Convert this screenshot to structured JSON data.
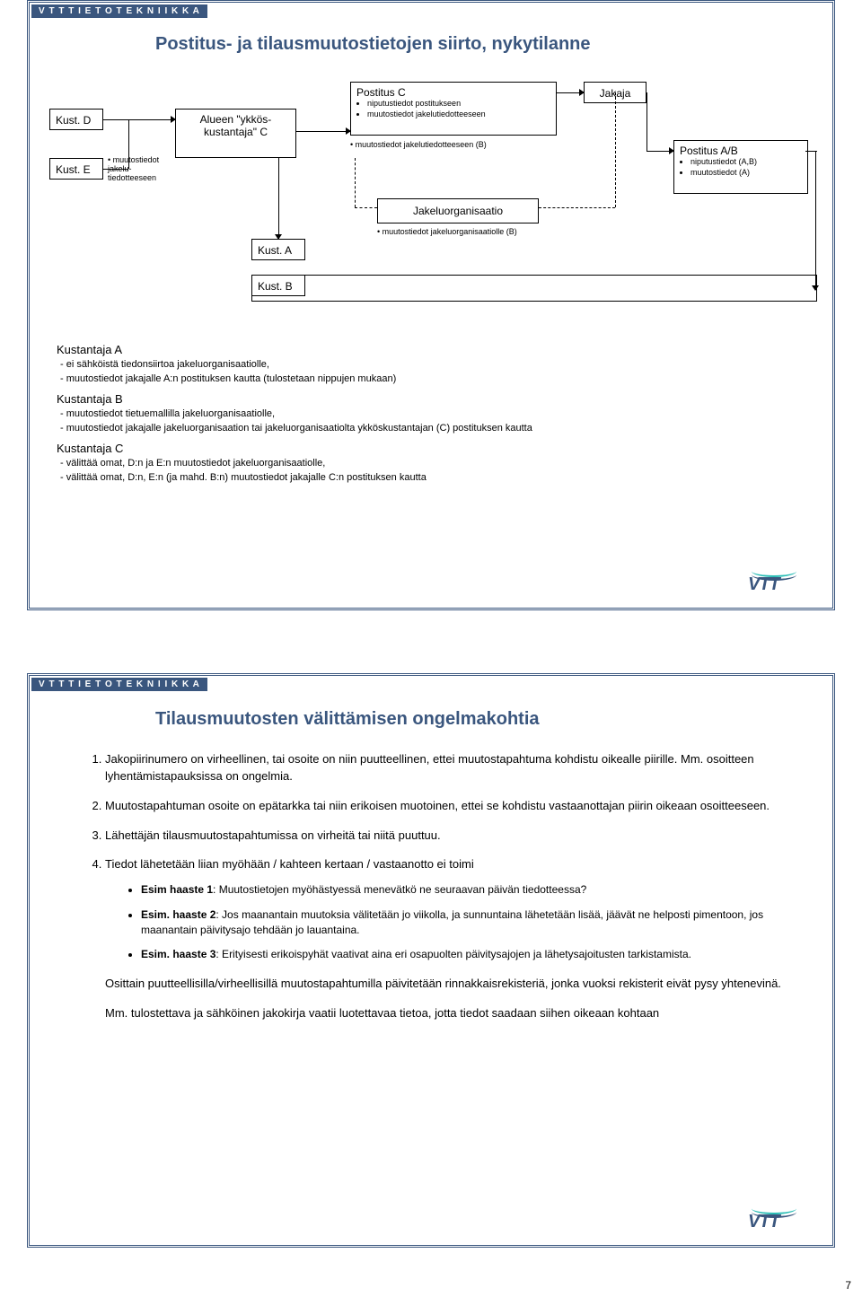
{
  "header": "V T T  T I E T O T E K N I I K K A",
  "slide1": {
    "title": "Postitus- ja tilausmuutostietojen siirto, nykytilanne",
    "boxes": {
      "kustD": "Kust. D",
      "kustE": "Kust. E",
      "annotE": "• muutostiedot jakelu-tiedotteeseen",
      "alueen": "Alueen \"ykkös-kustantaja\" C",
      "kustA": "Kust. A",
      "kustB": "Kust. B",
      "postitusC": "Postitus C",
      "postitusC_sub1": "niputustiedot postitukseen",
      "postitusC_sub2": "muutostiedot jakelutiedotteeseen",
      "postitusC_note": "muutostiedot jakelutiedotteeseen (B)",
      "jakeluorg": "Jakeluorganisaatio",
      "jakeluorg_note": "muutostiedot jakeluorganisaatiolle (B)",
      "jakaja": "Jakaja",
      "postitusAB": "Postitus A/B",
      "postitusAB_sub1": "niputustiedot (A,B)",
      "postitusAB_sub2": "muutostiedot (A)"
    },
    "text": {
      "kA_h": "Kustantaja A",
      "kA_1": "-  ei sähköistä tiedonsiirtoa jakeluorganisaatiolle,",
      "kA_2": "-  muutostiedot jakajalle A:n postituksen kautta (tulostetaan nippujen mukaan)",
      "kB_h": "Kustantaja B",
      "kB_1": "-  muutostiedot tietuemallilla jakeluorganisaatiolle,",
      "kB_2": "-  muutostiedot jakajalle jakeluorganisaation tai jakeluorganisaatiolta ykköskustantajan (C) postituksen kautta",
      "kC_h": "Kustantaja C",
      "kC_1": "-  välittää omat, D:n ja E:n muutostiedot jakeluorganisaatiolle,",
      "kC_2": "-  välittää omat, D:n, E:n (ja mahd. B:n) muutostiedot jakajalle C:n postituksen kautta"
    }
  },
  "slide2": {
    "title": "Tilausmuutosten välittämisen ongelmakohtia",
    "items": {
      "i1": "Jakopiirinumero on virheellinen, tai osoite on niin puutteellinen, ettei muutostapahtuma kohdistu oikealle piirille. Mm. osoitteen lyhentämistapauksissa on ongelmia.",
      "i2": "Muutostapahtuman osoite on epätarkka tai niin erikoisen muotoinen, ettei se kohdistu vastaanottajan piirin oikeaan osoitteeseen.",
      "i3": "Lähettäjän tilausmuutostapahtumissa on virheitä tai niitä puuttuu.",
      "i4": "Tiedot lähetetään liian myöhään / kahteen kertaan / vastaanotto ei toimi",
      "s1b": "Esim haaste 1",
      "s1": ": Muutostietojen myöhästyessä menevätkö ne seuraavan päivän tiedotteessa?",
      "s2b": "Esim. haaste 2",
      "s2": ": Jos maanantain muutoksia välitetään jo viikolla, ja sunnuntaina lähetetään lisää, jäävät ne helposti pimentoon, jos maanantain päivitysajo tehdään jo lauantaina.",
      "s3b": "Esim. haaste 3",
      "s3": ": Erityisesti erikoispyhät vaativat aina eri osapuolten päivitysajojen ja lähetysajoitusten tarkistamista.",
      "p1": "Osittain puutteellisilla/virheellisillä muutostapahtumilla päivitetään rinnakkaisrekisteriä, jonka vuoksi rekisterit eivät pysy yhtenevinä.",
      "p2": "Mm. tulostettava ja sähköinen jakokirja vaatii luotettavaa tietoa, jotta tiedot saadaan siihen oikeaan kohtaan"
    }
  },
  "page_number": "7",
  "logo_text": "VTT",
  "colors": {
    "accent": "#3a567e",
    "teal": "#29bdb5",
    "bg": "#ffffff",
    "text": "#000000"
  }
}
